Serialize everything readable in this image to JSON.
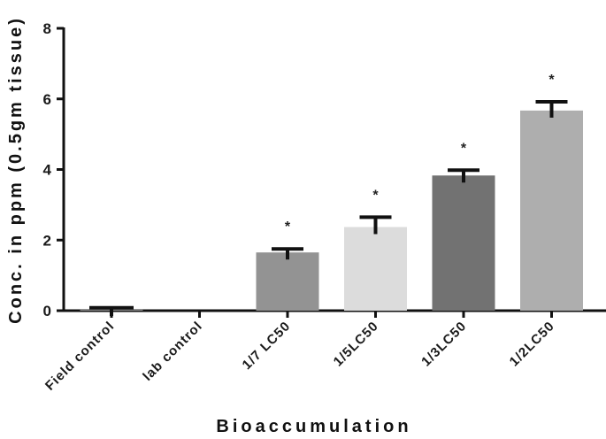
{
  "chart_data": {
    "type": "bar",
    "xlabel": "Bioaccumulation",
    "ylabel": "Conc. in ppm (0.5gm tissue)",
    "ylim": [
      0,
      8
    ],
    "yticks": [
      "0",
      "2",
      "4",
      "6",
      "8"
    ],
    "categories": [
      "Field control",
      "lab control",
      "1/7 LC50",
      "1/5LC50",
      "1/3LC50",
      "1/2LC50"
    ],
    "values": [
      0.05,
      0,
      1.65,
      2.37,
      3.83,
      5.67
    ],
    "errors": [
      0.03,
      0,
      0.1,
      0.28,
      0.15,
      0.25
    ],
    "significance": [
      "",
      "",
      "*",
      "*",
      "*",
      "*"
    ],
    "colors": [
      "#8e8e8e",
      "#8e8e8e",
      "#939393",
      "#dcdcdc",
      "#727272",
      "#aeaeae"
    ],
    "grid": false,
    "legend": "none"
  }
}
